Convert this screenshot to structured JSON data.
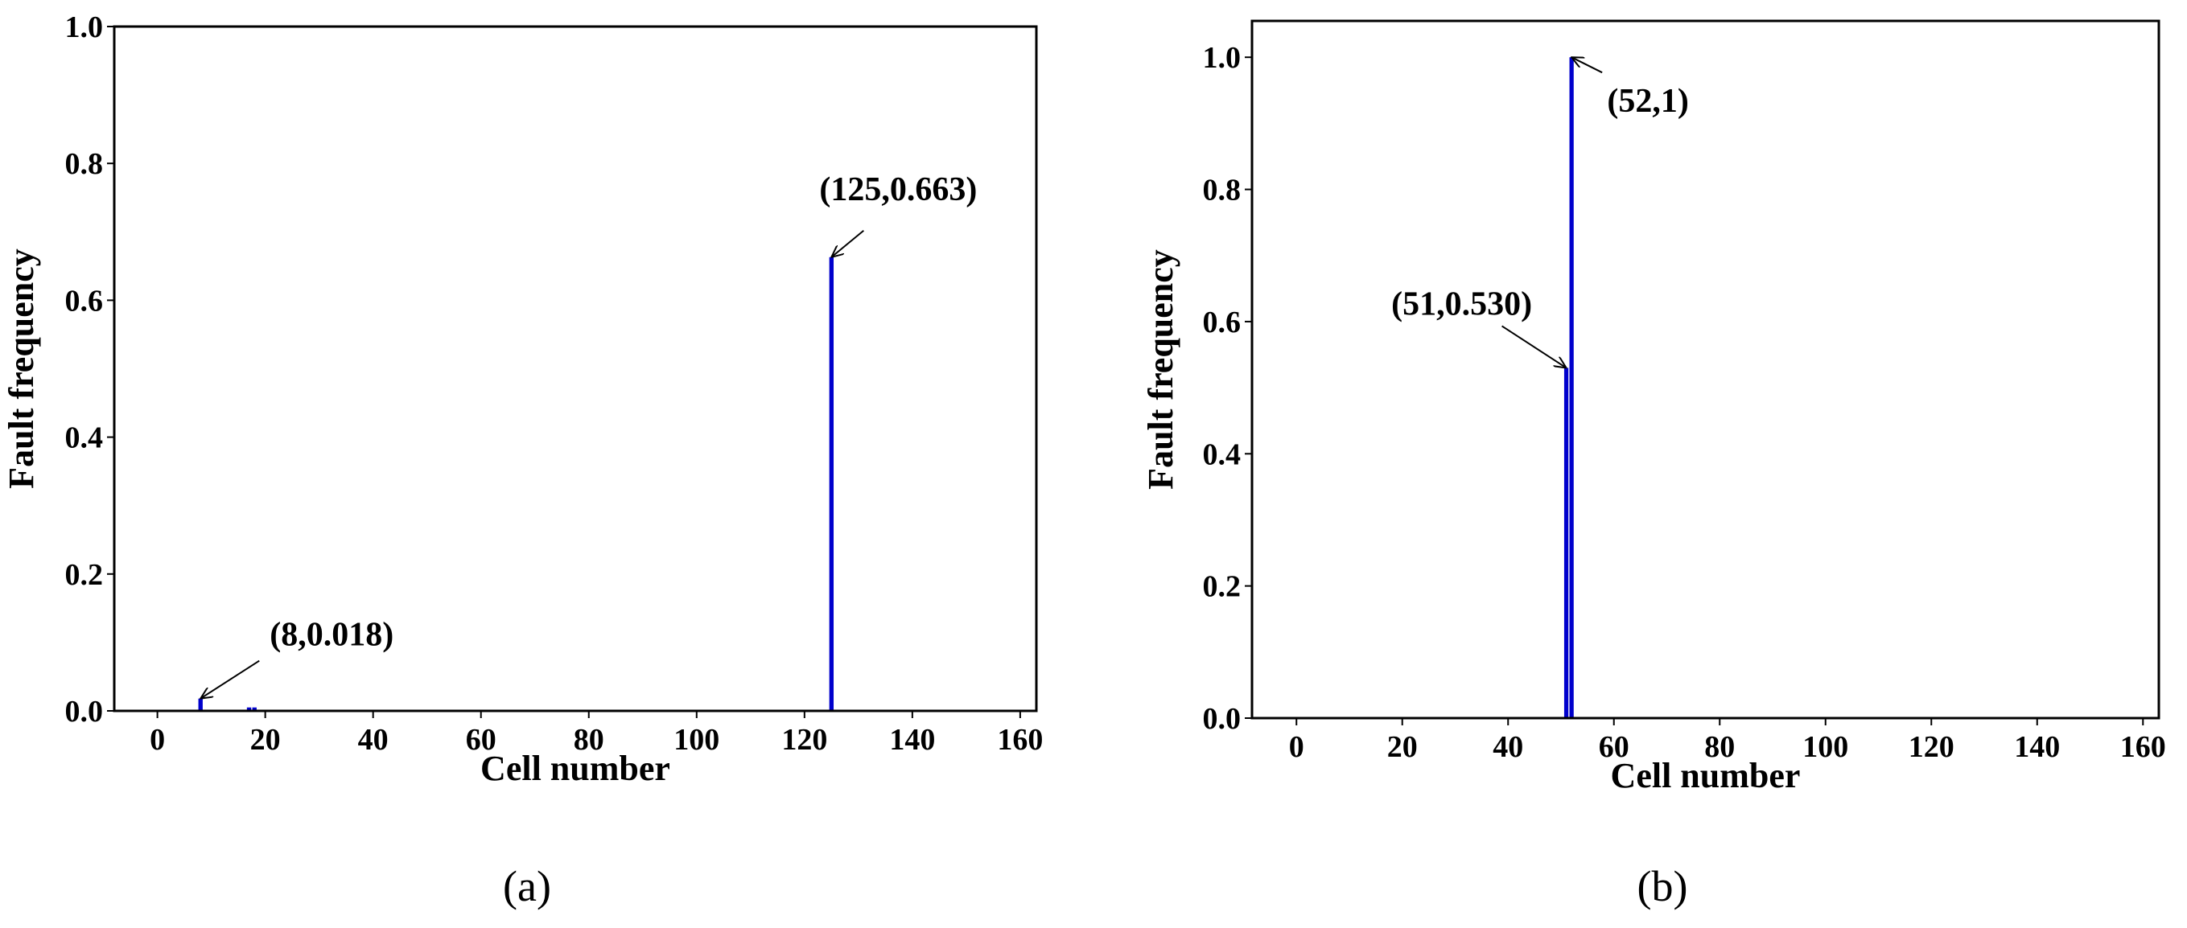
{
  "chart_data": [
    {
      "type": "bar",
      "xlabel": "Cell number",
      "ylabel": "Fault frequency",
      "caption": "(a)",
      "x": [
        8,
        17,
        18,
        125
      ],
      "values": [
        0.018,
        0.005,
        0.005,
        0.663
      ],
      "color": "#0000cc",
      "xlim": [
        -8,
        163
      ],
      "xticks": [
        0,
        20,
        40,
        60,
        80,
        100,
        120,
        140,
        160
      ],
      "ylim": [
        0,
        1
      ],
      "yticks": [
        {
          "value": 0,
          "label": "0.0"
        },
        {
          "value": 0.2,
          "label": "0.2"
        },
        {
          "value": 0.4,
          "label": "0.4"
        },
        {
          "value": 0.6,
          "label": "0.6"
        },
        {
          "value": 0.8,
          "label": "0.8"
        },
        {
          "value": 1,
          "label": "1.0"
        }
      ],
      "annotations": [
        {
          "text": "(8,0.018)",
          "x": 8,
          "y": 0.018
        },
        {
          "text": "(125,0.663)",
          "x": 125,
          "y": 0.663
        }
      ]
    },
    {
      "type": "bar",
      "xlabel": "Cell number",
      "ylabel": "Fault frequency",
      "caption": "(b)",
      "x": [
        51,
        52
      ],
      "values": [
        0.53,
        1
      ],
      "color": "#0000cc",
      "xlim": [
        -8.4,
        163
      ],
      "xticks": [
        0,
        20,
        40,
        60,
        80,
        100,
        120,
        140,
        160
      ],
      "ylim": [
        0,
        1.055
      ],
      "yticks": [
        {
          "value": 0,
          "label": "0.0"
        },
        {
          "value": 0.2,
          "label": "0.2"
        },
        {
          "value": 0.4,
          "label": "0.4"
        },
        {
          "value": 0.6,
          "label": "0.6"
        },
        {
          "value": 0.8,
          "label": "0.8"
        },
        {
          "value": 1,
          "label": "1.0"
        }
      ],
      "annotations": [
        {
          "text": "(52,1)",
          "x": 52,
          "y": 1
        },
        {
          "text": "(51,0.530)",
          "x": 51,
          "y": 0.53
        }
      ]
    }
  ]
}
